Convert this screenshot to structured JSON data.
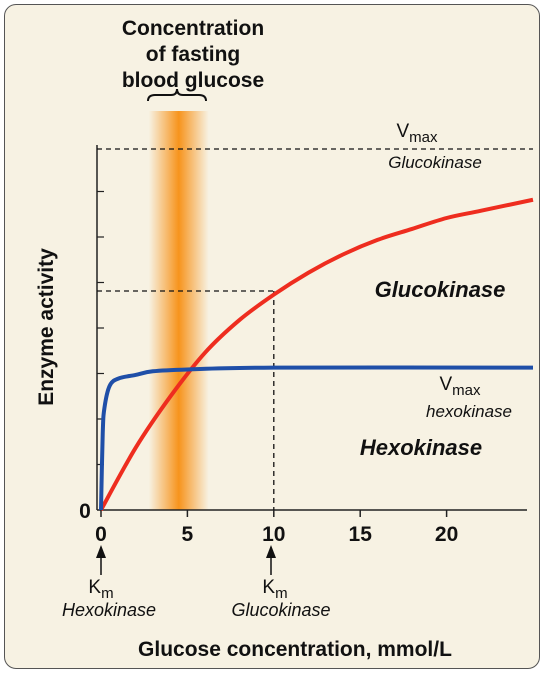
{
  "chart_data": {
    "type": "line",
    "xlabel": "Glucose concentration, mmol/L",
    "ylabel": "Enzyme activity",
    "xlim": [
      0,
      25
    ],
    "x_ticks": [
      0,
      5,
      10,
      15,
      20
    ],
    "y_tick_label": "0",
    "series": [
      {
        "name": "Glucokinase",
        "x": [
          0,
          2,
          4,
          6,
          8,
          10,
          12,
          14,
          16,
          18,
          20,
          22,
          25
        ],
        "values": [
          0,
          0.17,
          0.31,
          0.43,
          0.52,
          0.59,
          0.65,
          0.7,
          0.74,
          0.77,
          0.8,
          0.82,
          0.85
        ],
        "color": "#ee2d1f",
        "km": 10,
        "vmax_label": "Vmax",
        "vmax_sub": "Glucokinase"
      },
      {
        "name": "Hexokinase",
        "x": [
          0,
          0.1,
          0.2,
          0.5,
          1,
          2,
          3,
          5,
          10,
          25
        ],
        "values": [
          0,
          0.21,
          0.28,
          0.34,
          0.36,
          0.37,
          0.38,
          0.385,
          0.39,
          0.39
        ],
        "color": "#1f4fa8",
        "km": 0.1,
        "vmax_label": "Vmax",
        "vmax_sub": "hexokinase"
      }
    ],
    "band": {
      "label": "Concentration of fasting blood glucose",
      "label_lines": [
        "Concentration",
        "of fasting",
        "blood glucose"
      ],
      "x_range": [
        3,
        6
      ],
      "color": "#f7941d"
    },
    "annotations": {
      "km_word": "K",
      "km_sub": "m",
      "km_hexokinase_name": "Hexokinase",
      "km_glucokinase_name": "Glucokinase"
    }
  }
}
